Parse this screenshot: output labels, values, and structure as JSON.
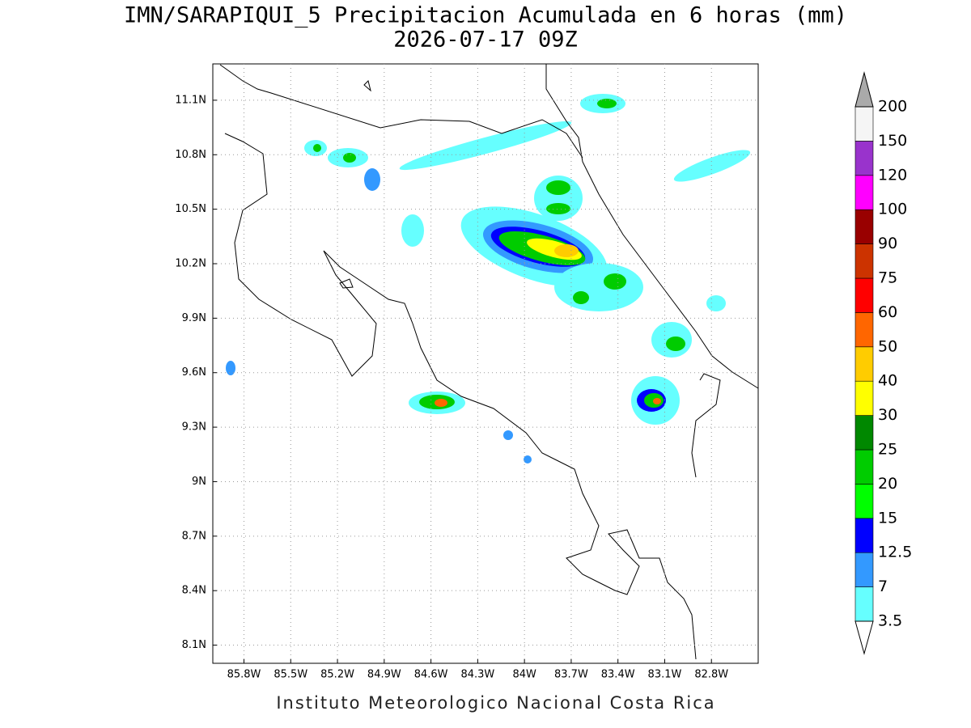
{
  "map": {
    "title": "IMN/SARAPIQUI_5 Precipitacion Acumulada en 6 horas (mm)",
    "subtitle": "2026-07-17 09Z",
    "footer": "Instituto Meteorologico Nacional Costa Rica",
    "lonlim": [
      -86,
      -82.5
    ],
    "latlim": [
      8,
      11.3
    ],
    "lonticks": [
      {
        "value": -85.8,
        "label": "85.8W"
      },
      {
        "value": -85.5,
        "label": "85.5W"
      },
      {
        "value": -85.2,
        "label": "85.2W"
      },
      {
        "value": -84.9,
        "label": "84.9W"
      },
      {
        "value": -84.6,
        "label": "84.6W"
      },
      {
        "value": -84.3,
        "label": "84.3W"
      },
      {
        "value": -84,
        "label": "84W"
      },
      {
        "value": -83.7,
        "label": "83.7W"
      },
      {
        "value": -83.4,
        "label": "83.4W"
      },
      {
        "value": -83.1,
        "label": "83.1W"
      },
      {
        "value": -82.8,
        "label": "82.8W"
      }
    ],
    "latticks": [
      {
        "value": 8.1,
        "label": "8.1N"
      },
      {
        "value": 8.4,
        "label": "8.4N"
      },
      {
        "value": 8.7,
        "label": "8.7N"
      },
      {
        "value": 9,
        "label": "9N"
      },
      {
        "value": 9.3,
        "label": "9.3N"
      },
      {
        "value": 9.6,
        "label": "9.6N"
      },
      {
        "value": 9.9,
        "label": "9.9N"
      },
      {
        "value": 10.2,
        "label": "10.2N"
      },
      {
        "value": 10.5,
        "label": "10.5N"
      },
      {
        "value": 10.8,
        "label": "10.8N"
      },
      {
        "value": 11.1,
        "label": "11.1N"
      }
    ],
    "grid": true,
    "colorbar": {
      "levels": [
        3.5,
        7,
        12.5,
        15,
        20,
        25,
        30,
        40,
        50,
        60,
        75,
        90,
        100,
        120,
        150,
        200
      ],
      "colors": [
        "#ffffff",
        "#66ffff",
        "#3399ff",
        "#0000ff",
        "#00ff00",
        "#00cc00",
        "#008800",
        "#ffff00",
        "#ffcc00",
        "#ff6600",
        "#ff0000",
        "#cc3300",
        "#990000",
        "#ff00ff",
        "#9933cc",
        "#f5f5f5",
        "#aaaaaa"
      ]
    }
  }
}
